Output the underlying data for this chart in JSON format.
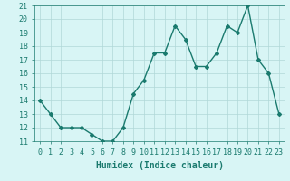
{
  "x": [
    0,
    1,
    2,
    3,
    4,
    5,
    6,
    7,
    8,
    9,
    10,
    11,
    12,
    13,
    14,
    15,
    16,
    17,
    18,
    19,
    20,
    21,
    22,
    23
  ],
  "y": [
    14,
    13,
    12,
    12,
    12,
    11.5,
    11,
    11,
    12,
    14.5,
    15.5,
    17.5,
    17.5,
    19.5,
    18.5,
    16.5,
    16.5,
    17.5,
    19.5,
    19,
    21,
    17,
    16,
    13
  ],
  "line_color": "#1a7a6e",
  "marker": "D",
  "marker_size": 2.0,
  "linewidth": 1.0,
  "xlabel": "Humidex (Indice chaleur)",
  "xlim": [
    -0.5,
    23.5
  ],
  "ylim": [
    11,
    21
  ],
  "yticks": [
    11,
    12,
    13,
    14,
    15,
    16,
    17,
    18,
    19,
    20,
    21
  ],
  "xticks": [
    0,
    1,
    2,
    3,
    4,
    5,
    6,
    7,
    8,
    9,
    10,
    11,
    12,
    13,
    14,
    15,
    16,
    17,
    18,
    19,
    20,
    21,
    22,
    23
  ],
  "background_color": "#d8f5f5",
  "grid_color": "#b0d8d8",
  "font_color": "#1a7a6e",
  "xlabel_fontsize": 7,
  "tick_fontsize": 6
}
